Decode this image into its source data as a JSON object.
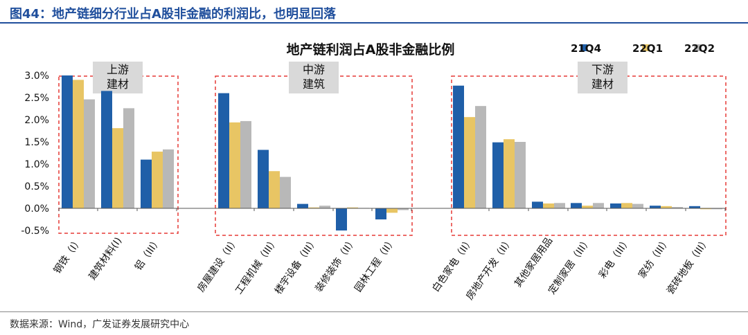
{
  "figure": {
    "title": "图44：地产链细分行业占A股非金融的利润比，也明显回落",
    "source": "数据来源：Wind，广发证券发展研究中心"
  },
  "chart_data": {
    "type": "bar",
    "title": "地产链利润占A股非金融比例",
    "ylim": [
      -0.005,
      0.03
    ],
    "ytick_values": [
      -0.005,
      0,
      0.005,
      0.01,
      0.015,
      0.02,
      0.025,
      0.03
    ],
    "ytick_labels": [
      "-0.5%",
      "0.0%",
      "0.5%",
      "1.0%",
      "1.5%",
      "2.0%",
      "2.5%",
      "3.0%"
    ],
    "legend_position": "top-right",
    "colors": [
      "#1f5fa8",
      "#e8c564",
      "#b8b8b8"
    ],
    "categories": [
      "钢铁（I）",
      "建筑材料(I)",
      "铝（III）",
      "房屋建设（II）",
      "工程机械（III）",
      "楼宇设备（III）",
      "装修装饰（II）",
      "园林工程（II）",
      "白色家电（II）",
      "房地产开发（II）",
      "其他家居用品",
      "定制家居（III）",
      "彩电（III）",
      "家纺（III）",
      "瓷砖地板（III）"
    ],
    "series": [
      {
        "name": "21Q4",
        "values": [
          0.03,
          0.0265,
          0.011,
          0.026,
          0.0132,
          0.001,
          -0.005,
          -0.0025,
          0.0277,
          0.0149,
          0.0015,
          0.0012,
          0.0011,
          0.0006,
          0.0005
        ]
      },
      {
        "name": "22Q1",
        "values": [
          0.029,
          0.0181,
          0.0128,
          0.0194,
          0.0084,
          0.0002,
          0.0002,
          -0.001,
          0.0206,
          0.0156,
          0.0011,
          0.0006,
          0.0012,
          0.0005,
          -0.0002
        ]
      },
      {
        "name": "22Q2",
        "values": [
          0.0246,
          0.0226,
          0.0133,
          0.0197,
          0.0071,
          0.0006,
          0.0001,
          -0.0004,
          0.0231,
          0.015,
          0.0012,
          0.0012,
          0.001,
          0.0003,
          -0.0002
        ]
      }
    ],
    "group_labels": [
      {
        "lines": [
          "上游",
          "建材"
        ]
      },
      {
        "lines": [
          "中游",
          "建筑"
        ]
      },
      {
        "lines": [
          "下游",
          "建材"
        ]
      }
    ]
  }
}
